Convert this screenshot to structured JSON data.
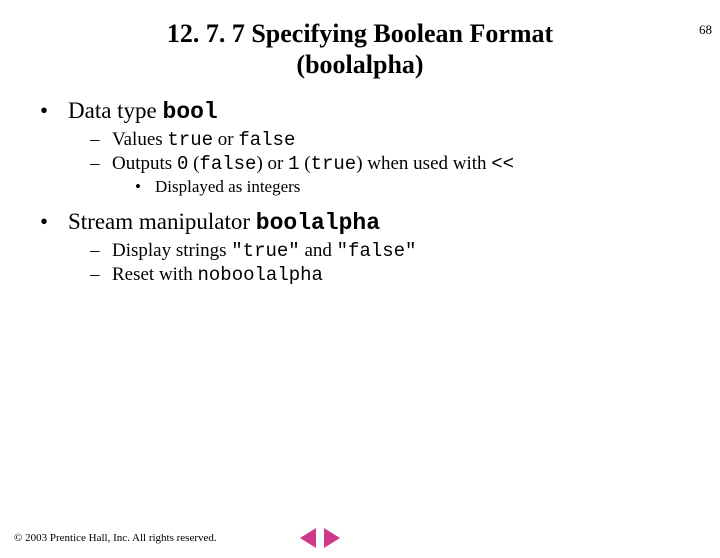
{
  "page_number": "68",
  "title_line1": "12. 7. 7 Specifying Boolean Format",
  "title_line2": "(boolalpha)",
  "b1_prefix": "Data type ",
  "b1_code": "bool",
  "b1a_prefix": "Values ",
  "b1a_c1": "true",
  "b1a_mid": " or ",
  "b1a_c2": "false",
  "b1b_prefix": "Outputs ",
  "b1b_c1": "0",
  "b1b_p1": " (",
  "b1b_c2": "false",
  "b1b_p2": ") or ",
  "b1b_c3": "1",
  "b1b_p3": " (",
  "b1b_c4": "true",
  "b1b_p4": ") when used with ",
  "b1b_c5": "<<",
  "b1b1": "Displayed as integers",
  "b2_prefix": "Stream manipulator ",
  "b2_code": "boolalpha",
  "b2a_prefix": "Display strings ",
  "b2a_c1": "\"true\"",
  "b2a_mid": " and ",
  "b2a_c2": "\"false\"",
  "b2b_prefix": "Reset with ",
  "b2b_code": "noboolalpha",
  "copyright": "© 2003 Prentice Hall, Inc. All rights reserved.",
  "colors": {
    "nav_arrow": "#d03a8a",
    "text": "#000000",
    "background": "#ffffff"
  }
}
